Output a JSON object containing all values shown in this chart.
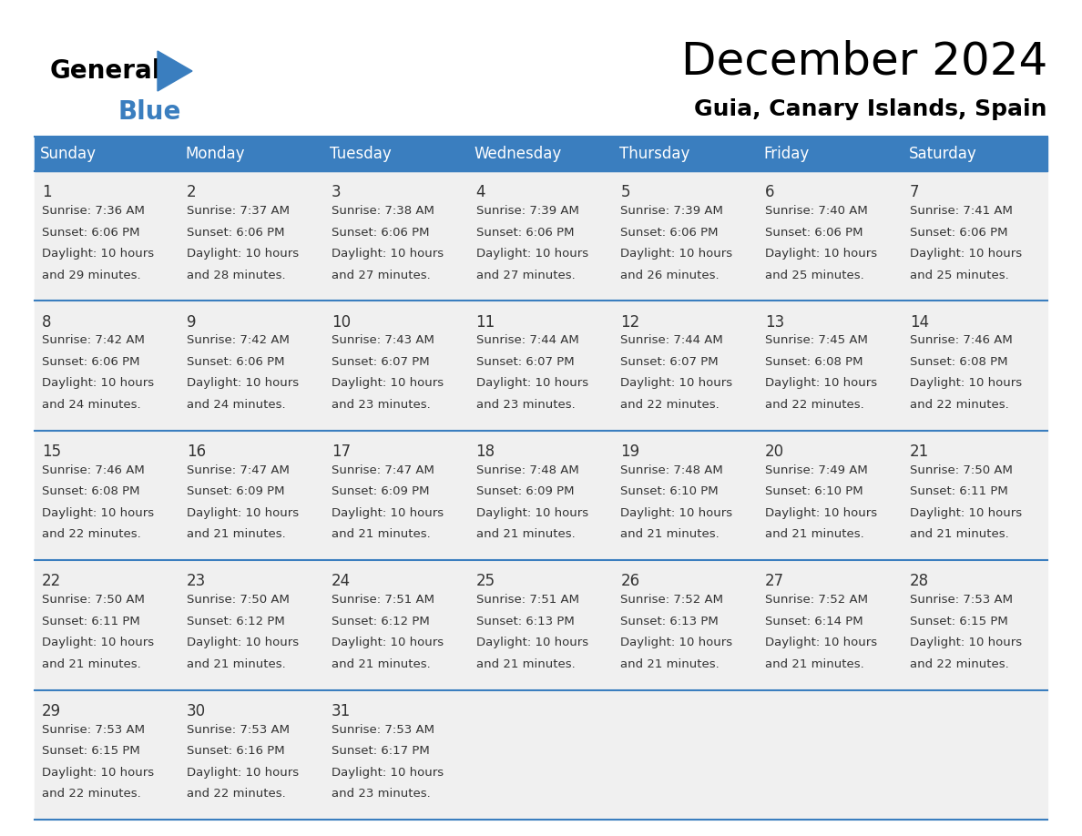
{
  "title": "December 2024",
  "subtitle": "Guia, Canary Islands, Spain",
  "days_of_week": [
    "Sunday",
    "Monday",
    "Tuesday",
    "Wednesday",
    "Thursday",
    "Friday",
    "Saturday"
  ],
  "header_bg": "#3a7ebf",
  "header_text": "#ffffff",
  "row_bg": "#f0f0f0",
  "cell_text_color": "#333333",
  "day_num_color": "#333333",
  "border_color": "#3a7ebf",
  "calendar_data": [
    [
      {
        "day": 1,
        "sunrise": "7:36 AM",
        "sunset": "6:06 PM",
        "daylight": "10 hours and 29 minutes."
      },
      {
        "day": 2,
        "sunrise": "7:37 AM",
        "sunset": "6:06 PM",
        "daylight": "10 hours and 28 minutes."
      },
      {
        "day": 3,
        "sunrise": "7:38 AM",
        "sunset": "6:06 PM",
        "daylight": "10 hours and 27 minutes."
      },
      {
        "day": 4,
        "sunrise": "7:39 AM",
        "sunset": "6:06 PM",
        "daylight": "10 hours and 27 minutes."
      },
      {
        "day": 5,
        "sunrise": "7:39 AM",
        "sunset": "6:06 PM",
        "daylight": "10 hours and 26 minutes."
      },
      {
        "day": 6,
        "sunrise": "7:40 AM",
        "sunset": "6:06 PM",
        "daylight": "10 hours and 25 minutes."
      },
      {
        "day": 7,
        "sunrise": "7:41 AM",
        "sunset": "6:06 PM",
        "daylight": "10 hours and 25 minutes."
      }
    ],
    [
      {
        "day": 8,
        "sunrise": "7:42 AM",
        "sunset": "6:06 PM",
        "daylight": "10 hours and 24 minutes."
      },
      {
        "day": 9,
        "sunrise": "7:42 AM",
        "sunset": "6:06 PM",
        "daylight": "10 hours and 24 minutes."
      },
      {
        "day": 10,
        "sunrise": "7:43 AM",
        "sunset": "6:07 PM",
        "daylight": "10 hours and 23 minutes."
      },
      {
        "day": 11,
        "sunrise": "7:44 AM",
        "sunset": "6:07 PM",
        "daylight": "10 hours and 23 minutes."
      },
      {
        "day": 12,
        "sunrise": "7:44 AM",
        "sunset": "6:07 PM",
        "daylight": "10 hours and 22 minutes."
      },
      {
        "day": 13,
        "sunrise": "7:45 AM",
        "sunset": "6:08 PM",
        "daylight": "10 hours and 22 minutes."
      },
      {
        "day": 14,
        "sunrise": "7:46 AM",
        "sunset": "6:08 PM",
        "daylight": "10 hours and 22 minutes."
      }
    ],
    [
      {
        "day": 15,
        "sunrise": "7:46 AM",
        "sunset": "6:08 PM",
        "daylight": "10 hours and 22 minutes."
      },
      {
        "day": 16,
        "sunrise": "7:47 AM",
        "sunset": "6:09 PM",
        "daylight": "10 hours and 21 minutes."
      },
      {
        "day": 17,
        "sunrise": "7:47 AM",
        "sunset": "6:09 PM",
        "daylight": "10 hours and 21 minutes."
      },
      {
        "day": 18,
        "sunrise": "7:48 AM",
        "sunset": "6:09 PM",
        "daylight": "10 hours and 21 minutes."
      },
      {
        "day": 19,
        "sunrise": "7:48 AM",
        "sunset": "6:10 PM",
        "daylight": "10 hours and 21 minutes."
      },
      {
        "day": 20,
        "sunrise": "7:49 AM",
        "sunset": "6:10 PM",
        "daylight": "10 hours and 21 minutes."
      },
      {
        "day": 21,
        "sunrise": "7:50 AM",
        "sunset": "6:11 PM",
        "daylight": "10 hours and 21 minutes."
      }
    ],
    [
      {
        "day": 22,
        "sunrise": "7:50 AM",
        "sunset": "6:11 PM",
        "daylight": "10 hours and 21 minutes."
      },
      {
        "day": 23,
        "sunrise": "7:50 AM",
        "sunset": "6:12 PM",
        "daylight": "10 hours and 21 minutes."
      },
      {
        "day": 24,
        "sunrise": "7:51 AM",
        "sunset": "6:12 PM",
        "daylight": "10 hours and 21 minutes."
      },
      {
        "day": 25,
        "sunrise": "7:51 AM",
        "sunset": "6:13 PM",
        "daylight": "10 hours and 21 minutes."
      },
      {
        "day": 26,
        "sunrise": "7:52 AM",
        "sunset": "6:13 PM",
        "daylight": "10 hours and 21 minutes."
      },
      {
        "day": 27,
        "sunrise": "7:52 AM",
        "sunset": "6:14 PM",
        "daylight": "10 hours and 21 minutes."
      },
      {
        "day": 28,
        "sunrise": "7:53 AM",
        "sunset": "6:15 PM",
        "daylight": "10 hours and 22 minutes."
      }
    ],
    [
      {
        "day": 29,
        "sunrise": "7:53 AM",
        "sunset": "6:15 PM",
        "daylight": "10 hours and 22 minutes."
      },
      {
        "day": 30,
        "sunrise": "7:53 AM",
        "sunset": "6:16 PM",
        "daylight": "10 hours and 22 minutes."
      },
      {
        "day": 31,
        "sunrise": "7:53 AM",
        "sunset": "6:17 PM",
        "daylight": "10 hours and 23 minutes."
      },
      null,
      null,
      null,
      null
    ]
  ],
  "logo_text1": "General",
  "logo_text2": "Blue",
  "logo_triangle_color": "#3a7ebf",
  "title_fontsize": 36,
  "subtitle_fontsize": 18,
  "header_fontsize": 12,
  "day_num_fontsize": 12,
  "cell_fontsize": 9.5
}
